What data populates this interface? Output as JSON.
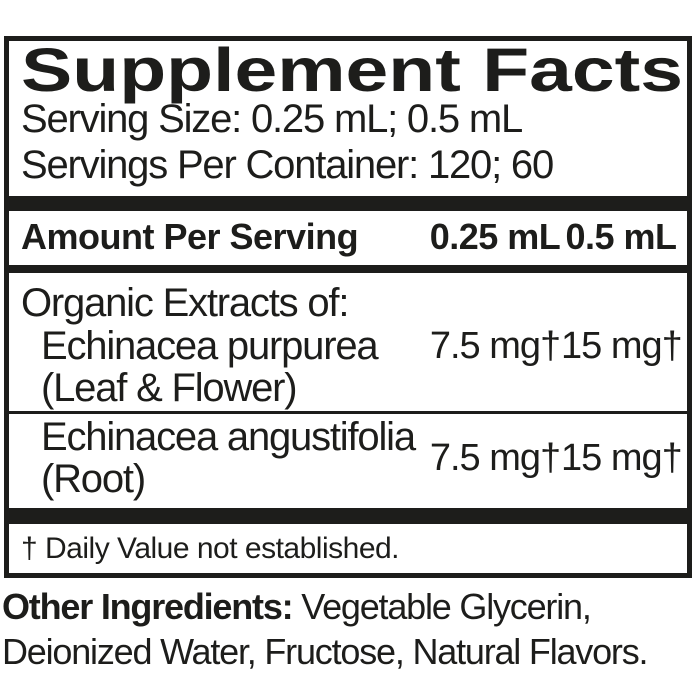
{
  "label": {
    "title": "Supplement Facts",
    "serving_size": "Serving Size: 0.25 mL; 0.5 mL",
    "servings_per_container": "Servings Per Container: 120; 60",
    "header": {
      "amount_per_serving": "Amount Per Serving",
      "col1": "0.25 mL",
      "col2": "0.5 mL"
    },
    "rows": [
      {
        "group": "Organic Extracts of:",
        "name_line1": "Echinacea purpurea",
        "name_line2": "(Leaf & Flower)",
        "amount1": "7.5 mg†",
        "amount2": "15 mg†"
      },
      {
        "name_line1": "Echinacea angustifolia",
        "name_line2": "(Root)",
        "amount1": "7.5 mg†",
        "amount2": "15 mg†"
      }
    ],
    "footnote": "† Daily Value not established.",
    "other_ingredients": {
      "label": "Other Ingredients:",
      "text": " Vegetable Glycerin, Deionized Water, Fructose, Natural Flavors."
    },
    "colors": {
      "ink": "#1d1d1b",
      "background": "#ffffff"
    }
  }
}
